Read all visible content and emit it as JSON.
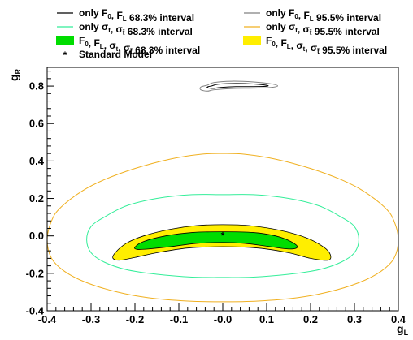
{
  "chart_data": {
    "type": "contour",
    "xlabel": "g_L",
    "ylabel": "g_R",
    "xlim": [
      -0.4,
      0.4
    ],
    "ylim": [
      -0.4,
      0.9
    ],
    "x_ticks": [
      -0.4,
      -0.3,
      -0.2,
      -0.1,
      -0.0,
      0.1,
      0.2,
      0.3,
      0.4
    ],
    "x_tick_labels": [
      "-0.4",
      "-0.3",
      "-0.2",
      "-0.1",
      "-0.0",
      "0.1",
      "0.2",
      "0.3",
      "0.4"
    ],
    "y_ticks": [
      -0.4,
      -0.2,
      0.0,
      0.2,
      0.4,
      0.6,
      0.8
    ],
    "y_tick_labels": [
      "-0.4",
      "-0.2",
      "0.0",
      "0.2",
      "0.4",
      "0.6",
      "0.8"
    ],
    "legend_placement": "top (above plot)",
    "grid": false,
    "legend": [
      {
        "main": "only F",
        "parts": [
          [
            "only F",
            ""
          ],
          [
            "0",
            "sub"
          ],
          [
            ", F",
            ""
          ],
          [
            "L",
            "sub"
          ],
          [
            " 68.3% interval",
            ""
          ]
        ],
        "style": "line",
        "color": "#000000"
      },
      {
        "main": "only F",
        "parts": [
          [
            "only F",
            ""
          ],
          [
            "0",
            "sub"
          ],
          [
            ", F",
            ""
          ],
          [
            "L",
            "sub"
          ],
          [
            " 95.5% interval",
            ""
          ]
        ],
        "style": "line",
        "color": "#808080"
      },
      {
        "main": "only σ",
        "parts": [
          [
            "only σ",
            ""
          ],
          [
            "t",
            "sub"
          ],
          [
            ", σ",
            ""
          ],
          [
            "t̄",
            "sub"
          ],
          [
            " 68.3% interval",
            ""
          ]
        ],
        "style": "line",
        "color": "#33ee99"
      },
      {
        "main": "only σ",
        "parts": [
          [
            "only σ",
            ""
          ],
          [
            "t",
            "sub"
          ],
          [
            ", σ",
            ""
          ],
          [
            "t̄",
            "sub"
          ],
          [
            " 95.5% interval",
            ""
          ]
        ],
        "style": "line",
        "color": "#f0b020"
      },
      {
        "main": "F",
        "parts": [
          [
            "F",
            ""
          ],
          [
            "0",
            "sub"
          ],
          [
            ", F",
            ""
          ],
          [
            "L",
            "sub"
          ],
          [
            ", σ",
            ""
          ],
          [
            "t",
            "sub"
          ],
          [
            ", σ",
            ""
          ],
          [
            "t̄",
            "sub"
          ],
          [
            " 68.3% interval",
            ""
          ]
        ],
        "style": "fill",
        "color": "#00dd00"
      },
      {
        "main": "F",
        "parts": [
          [
            "F",
            ""
          ],
          [
            "0",
            "sub"
          ],
          [
            ", F",
            ""
          ],
          [
            "L",
            "sub"
          ],
          [
            ", σ",
            ""
          ],
          [
            "t",
            "sub"
          ],
          [
            ", σ",
            ""
          ],
          [
            "t̄",
            "sub"
          ],
          [
            " 95.5% interval",
            ""
          ]
        ],
        "style": "fill",
        "color": "#ffee00"
      },
      {
        "main": "Standard Model",
        "parts": [
          [
            "Standard Model",
            ""
          ]
        ],
        "style": "marker",
        "color": "#000000"
      }
    ],
    "regions": [
      {
        "name": "only F0, FL 95.5%",
        "kind": "line",
        "color": "#808080",
        "points": [
          [
            -0.035,
            0.805
          ],
          [
            -0.02,
            0.819
          ],
          [
            0.02,
            0.826
          ],
          [
            0.07,
            0.822
          ],
          [
            0.11,
            0.812
          ],
          [
            0.125,
            0.801
          ],
          [
            0.11,
            0.793
          ],
          [
            0.07,
            0.789
          ],
          [
            0.02,
            0.787
          ],
          [
            -0.02,
            0.78
          ],
          [
            -0.035,
            0.773
          ],
          [
            -0.05,
            0.78
          ],
          [
            -0.05,
            0.795
          ]
        ]
      },
      {
        "name": "only F0, FL 68.3%",
        "kind": "line",
        "color": "#000000",
        "points": [
          [
            -0.025,
            0.801
          ],
          [
            -0.01,
            0.81
          ],
          [
            0.03,
            0.814
          ],
          [
            0.07,
            0.811
          ],
          [
            0.1,
            0.804
          ],
          [
            0.1,
            0.799
          ],
          [
            0.07,
            0.797
          ],
          [
            0.03,
            0.797
          ],
          [
            -0.005,
            0.793
          ],
          [
            -0.02,
            0.788
          ],
          [
            -0.035,
            0.791
          ],
          [
            -0.033,
            0.797
          ]
        ]
      },
      {
        "name": "only sigma 95.5%",
        "kind": "line",
        "color": "#f0b020",
        "points": [
          [
            -0.4,
            -0.02
          ],
          [
            -0.39,
            0.08
          ],
          [
            -0.37,
            0.15
          ],
          [
            -0.32,
            0.24
          ],
          [
            -0.27,
            0.3
          ],
          [
            -0.2,
            0.36
          ],
          [
            -0.12,
            0.41
          ],
          [
            -0.05,
            0.436
          ],
          [
            0.0,
            0.44
          ],
          [
            0.05,
            0.436
          ],
          [
            0.12,
            0.41
          ],
          [
            0.2,
            0.36
          ],
          [
            0.27,
            0.3
          ],
          [
            0.32,
            0.24
          ],
          [
            0.37,
            0.15
          ],
          [
            0.39,
            0.08
          ],
          [
            0.4,
            -0.02
          ],
          [
            0.39,
            -0.12
          ],
          [
            0.36,
            -0.19
          ],
          [
            0.31,
            -0.25
          ],
          [
            0.24,
            -0.3
          ],
          [
            0.17,
            -0.33
          ],
          [
            0.08,
            -0.348
          ],
          [
            0.0,
            -0.352
          ],
          [
            -0.08,
            -0.348
          ],
          [
            -0.17,
            -0.33
          ],
          [
            -0.24,
            -0.3
          ],
          [
            -0.31,
            -0.25
          ],
          [
            -0.36,
            -0.19
          ],
          [
            -0.39,
            -0.12
          ]
        ]
      },
      {
        "name": "only sigma 68.3%",
        "kind": "line",
        "color": "#33ee99",
        "points": [
          [
            -0.31,
            -0.02
          ],
          [
            -0.3,
            0.05
          ],
          [
            -0.27,
            0.1
          ],
          [
            -0.22,
            0.16
          ],
          [
            -0.15,
            0.2
          ],
          [
            -0.07,
            0.22
          ],
          [
            0.0,
            0.22
          ],
          [
            0.07,
            0.22
          ],
          [
            0.15,
            0.2
          ],
          [
            0.22,
            0.16
          ],
          [
            0.27,
            0.1
          ],
          [
            0.3,
            0.05
          ],
          [
            0.31,
            -0.02
          ],
          [
            0.3,
            -0.09
          ],
          [
            0.27,
            -0.14
          ],
          [
            0.22,
            -0.18
          ],
          [
            0.15,
            -0.205
          ],
          [
            0.07,
            -0.22
          ],
          [
            0.0,
            -0.222
          ],
          [
            -0.07,
            -0.22
          ],
          [
            -0.15,
            -0.205
          ],
          [
            -0.22,
            -0.18
          ],
          [
            -0.27,
            -0.14
          ],
          [
            -0.3,
            -0.09
          ]
        ]
      },
      {
        "name": "combined 95.5%",
        "kind": "fill",
        "color": "#ffee00",
        "points": [
          [
            -0.25,
            -0.12
          ],
          [
            -0.245,
            -0.09
          ],
          [
            -0.22,
            -0.04
          ],
          [
            -0.18,
            0.0
          ],
          [
            -0.12,
            0.035
          ],
          [
            -0.06,
            0.055
          ],
          [
            0.0,
            0.06
          ],
          [
            0.06,
            0.055
          ],
          [
            0.13,
            0.03
          ],
          [
            0.19,
            -0.01
          ],
          [
            0.23,
            -0.06
          ],
          [
            0.245,
            -0.1
          ],
          [
            0.24,
            -0.13
          ],
          [
            0.2,
            -0.12
          ],
          [
            0.15,
            -0.09
          ],
          [
            0.08,
            -0.065
          ],
          [
            0.0,
            -0.058
          ],
          [
            -0.08,
            -0.065
          ],
          [
            -0.15,
            -0.09
          ],
          [
            -0.2,
            -0.115
          ],
          [
            -0.235,
            -0.13
          ]
        ]
      },
      {
        "name": "combined 68.3%",
        "kind": "fill",
        "color": "#00dd00",
        "points": [
          [
            -0.2,
            -0.06
          ],
          [
            -0.18,
            -0.03
          ],
          [
            -0.13,
            0.0
          ],
          [
            -0.07,
            0.018
          ],
          [
            0.0,
            0.022
          ],
          [
            0.07,
            0.018
          ],
          [
            0.12,
            0.0
          ],
          [
            0.155,
            -0.03
          ],
          [
            0.17,
            -0.06
          ],
          [
            0.15,
            -0.07
          ],
          [
            0.1,
            -0.055
          ],
          [
            0.05,
            -0.04
          ],
          [
            0.0,
            -0.035
          ],
          [
            -0.06,
            -0.04
          ],
          [
            -0.12,
            -0.058
          ],
          [
            -0.17,
            -0.07
          ],
          [
            -0.195,
            -0.072
          ]
        ]
      }
    ],
    "standard_model": {
      "x": 0.0,
      "y": 0.0,
      "label": "Standard Model"
    }
  }
}
